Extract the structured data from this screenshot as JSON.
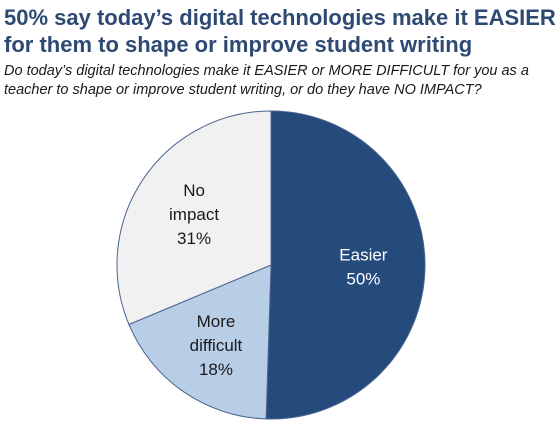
{
  "title_line1": "50% say today’s digital technologies make it EASIER",
  "title_line2": "for them to shape or improve student writing",
  "subtitle_line1": "Do today’s digital technologies make it EASIER or MORE DIFFICULT for you as a",
  "subtitle_line2": "teacher to shape or improve student writing, or do they have NO IMPACT?",
  "colors": {
    "title": "#2e4a73",
    "easier": "#254a7c",
    "more_difficult": "#b8cde6",
    "no_impact": "#f1f1f1",
    "outline": "#4a6690"
  },
  "chart_data": {
    "type": "pie",
    "title": "50% say today’s digital technologies make it EASIER for them to shape or improve student writing",
    "slices": [
      {
        "lines": [
          "Easier",
          "50%"
        ],
        "value": 50,
        "color": "#254a7c",
        "text_color": "#ffffff"
      },
      {
        "lines": [
          "More",
          "difficult",
          "18%"
        ],
        "value": 18,
        "color": "#b8cde6",
        "text_color": "#1a1a1a"
      },
      {
        "lines": [
          "No",
          "impact",
          "31%"
        ],
        "value": 31,
        "color": "#f1f1f1",
        "text_color": "#1a1a1a"
      }
    ]
  }
}
